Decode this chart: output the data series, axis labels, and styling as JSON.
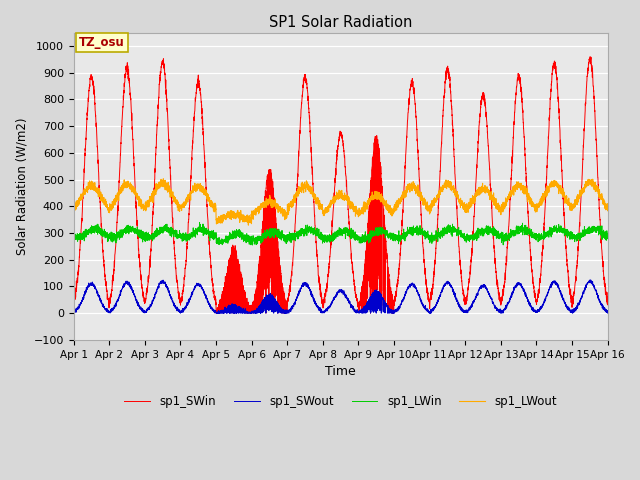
{
  "title": "SP1 Solar Radiation",
  "xlabel": "Time",
  "ylabel": "Solar Radiation (W/m2)",
  "tz_label": "TZ_osu",
  "ylim": [
    -100,
    1050
  ],
  "yticks": [
    -100,
    0,
    100,
    200,
    300,
    400,
    500,
    600,
    700,
    800,
    900,
    1000
  ],
  "x_tick_labels": [
    "Apr 1",
    "Apr 2",
    "Apr 3",
    "Apr 4",
    "Apr 5",
    "Apr 6",
    "Apr 7",
    "Apr 8",
    "Apr 9",
    "Apr 10",
    "Apr 11",
    "Apr 12",
    "Apr 13",
    "Apr 14",
    "Apr 15",
    "Apr 16"
  ],
  "colors": {
    "sp1_SWin": "#ff0000",
    "sp1_SWout": "#0000cc",
    "sp1_LWin": "#00cc00",
    "sp1_LWout": "#ffaa00"
  },
  "figure_bg": "#d8d8d8",
  "axes_bg": "#e8e8e8",
  "n_days": 15,
  "pts_per_day": 288,
  "cloud_factor": [
    0.92,
    0.95,
    0.98,
    0.9,
    0.25,
    0.55,
    0.92,
    0.7,
    0.68,
    0.9,
    0.95,
    0.85,
    0.92,
    0.97,
    0.99
  ]
}
